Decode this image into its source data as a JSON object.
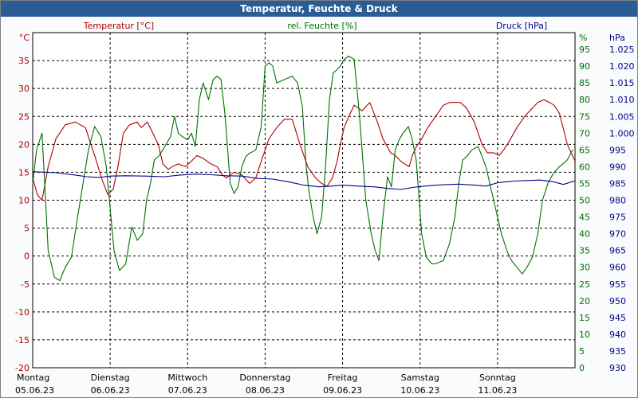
{
  "window": {
    "title": "Temperatur, Feuchte & Druck"
  },
  "chart_data": {
    "type": "line",
    "title": "Temperatur, Feuchte & Druck",
    "grid": true,
    "colors": {
      "temperature": "#b00000",
      "humidity": "#007000",
      "pressure": "#00008b",
      "grid": "#000000"
    },
    "axes": {
      "temperature": {
        "label": "Temperatur [°C]",
        "unit_label": "°C",
        "range": [
          -20,
          40
        ],
        "ticks": [
          "-20",
          "-15",
          "-10",
          "-5",
          "0",
          "5",
          "10",
          "15",
          "20",
          "25",
          "30",
          "35"
        ]
      },
      "humidity": {
        "label": "rel. Feuchte [%]",
        "unit_label": "%",
        "range": [
          0,
          100
        ],
        "ticks": [
          "0",
          "5",
          "10",
          "15",
          "20",
          "25",
          "30",
          "35",
          "40",
          "45",
          "50",
          "55",
          "60",
          "65",
          "70",
          "75",
          "80",
          "85",
          "90",
          "95"
        ]
      },
      "pressure": {
        "label": "Druck [hPa]",
        "unit_label": "hPa",
        "range": [
          930,
          1030
        ],
        "ticks": [
          "930",
          "935",
          "940",
          "945",
          "950",
          "955",
          "960",
          "965",
          "970",
          "975",
          "980",
          "985",
          "990",
          "995",
          "1.000",
          "1.005",
          "1.010",
          "1.015",
          "1.020",
          "1.025"
        ]
      },
      "x_range": [
        0,
        7
      ]
    },
    "days": [
      {
        "name": "Montag",
        "date": "05.06.23"
      },
      {
        "name": "Dienstag",
        "date": "06.06.23"
      },
      {
        "name": "Mittwoch",
        "date": "07.06.23"
      },
      {
        "name": "Donnerstag",
        "date": "08.06.23"
      },
      {
        "name": "Freitag",
        "date": "09.06.23"
      },
      {
        "name": "Samstag",
        "date": "10.06.23"
      },
      {
        "name": "Sonntag",
        "date": "11.06.23"
      }
    ],
    "series": [
      {
        "name": "Temperatur [°C]",
        "axis": "temperature",
        "x": [
          0,
          0.06,
          0.12,
          0.2,
          0.3,
          0.42,
          0.55,
          0.68,
          0.8,
          0.9,
          0.97,
          1.04,
          1.1,
          1.17,
          1.25,
          1.35,
          1.4,
          1.48,
          1.55,
          1.62,
          1.68,
          1.75,
          1.8,
          1.88,
          1.97,
          2.05,
          2.12,
          2.2,
          2.3,
          2.38,
          2.45,
          2.5,
          2.6,
          2.7,
          2.8,
          2.88,
          2.95,
          3.05,
          3.15,
          3.25,
          3.35,
          3.45,
          3.55,
          3.65,
          3.73,
          3.8,
          3.87,
          3.93,
          3.97,
          4.02,
          4.08,
          4.15,
          4.25,
          4.35,
          4.45,
          4.52,
          4.58,
          4.62,
          4.68,
          4.75,
          4.8,
          4.86,
          4.9,
          4.95,
          5.02,
          5.1,
          5.2,
          5.3,
          5.38,
          5.45,
          5.52,
          5.6,
          5.7,
          5.8,
          5.87,
          5.95,
          6.02,
          6.08,
          6.15,
          6.25,
          6.35,
          6.45,
          6.52,
          6.6,
          6.67,
          6.73,
          6.8,
          6.9,
          7.0
        ],
        "values": [
          14,
          11,
          10,
          16,
          21,
          23.5,
          24,
          23,
          18,
          13.5,
          11,
          12,
          16,
          22,
          23.5,
          24,
          23,
          24,
          22,
          20,
          16.5,
          15.5,
          16,
          16.5,
          16,
          17,
          18,
          17.5,
          16.5,
          16,
          14.5,
          14,
          15,
          14.5,
          13,
          14,
          17,
          21,
          23,
          24.5,
          24.5,
          20,
          16,
          14,
          13,
          12.5,
          14,
          17,
          20,
          23,
          25,
          27,
          26,
          27.5,
          24,
          21,
          19.5,
          18.5,
          18,
          17,
          16.5,
          16,
          18,
          19.5,
          21,
          23,
          25,
          27,
          27.5,
          27.5,
          27.5,
          26.5,
          24,
          20,
          18.5,
          18.5,
          18,
          19,
          20.5,
          23,
          25,
          26.5,
          27.5,
          28,
          27.5,
          27,
          25.5,
          20,
          17
        ]
      },
      {
        "name": "rel. Feuchte [%]",
        "axis": "humidity",
        "x": [
          0,
          0.05,
          0.12,
          0.2,
          0.28,
          0.35,
          0.42,
          0.5,
          0.58,
          0.65,
          0.72,
          0.8,
          0.88,
          0.95,
          1.05,
          1.12,
          1.2,
          1.28,
          1.35,
          1.42,
          1.47,
          1.52,
          1.57,
          1.62,
          1.68,
          1.73,
          1.78,
          1.83,
          1.88,
          1.93,
          2.0,
          2.05,
          2.1,
          2.15,
          2.2,
          2.27,
          2.33,
          2.38,
          2.43,
          2.48,
          2.55,
          2.6,
          2.65,
          2.7,
          2.75,
          2.8,
          2.88,
          2.95,
          3.0,
          3.05,
          3.1,
          3.15,
          3.25,
          3.35,
          3.42,
          3.48,
          3.53,
          3.57,
          3.62,
          3.67,
          3.73,
          3.78,
          3.83,
          3.88,
          3.93,
          3.97,
          4.02,
          4.08,
          4.15,
          4.22,
          4.3,
          4.37,
          4.42,
          4.47,
          4.52,
          4.58,
          4.63,
          4.68,
          4.73,
          4.78,
          4.85,
          4.9,
          4.95,
          5.02,
          5.08,
          5.15,
          5.2,
          5.3,
          5.38,
          5.45,
          5.5,
          5.55,
          5.6,
          5.67,
          5.75,
          5.85,
          5.95,
          6.05,
          6.12,
          6.18,
          6.25,
          6.32,
          6.38,
          6.45,
          6.52,
          6.58,
          6.65,
          6.72,
          6.8,
          6.9,
          6.97
        ],
        "values": [
          55,
          65,
          70,
          35,
          27,
          26,
          30,
          33,
          45,
          55,
          65,
          72,
          69,
          60,
          35,
          29,
          31,
          42,
          38,
          40,
          50,
          55,
          62,
          63,
          65,
          67,
          69,
          75,
          70,
          69,
          68,
          70,
          66,
          80,
          85,
          80,
          86,
          87,
          86,
          76,
          55,
          52,
          54,
          60,
          63,
          64,
          65,
          72,
          90,
          91,
          90,
          85,
          86,
          87,
          85,
          78,
          60,
          52,
          45,
          40,
          45,
          60,
          80,
          88,
          89,
          90,
          92,
          93,
          92,
          75,
          50,
          40,
          35,
          32,
          45,
          57,
          54,
          65,
          68,
          70,
          72,
          68,
          62,
          40,
          33,
          31,
          31,
          32,
          37,
          45,
          55,
          62,
          63,
          65,
          66,
          60,
          50,
          40,
          35,
          32,
          30,
          28,
          30,
          33,
          40,
          50,
          55,
          58,
          60,
          62,
          65
        ],
        "raw_note": ""
      },
      {
        "name": "Druck [hPa]",
        "axis": "pressure",
        "x": [
          0,
          0.3,
          0.55,
          0.7,
          0.85,
          1.0,
          1.2,
          1.45,
          1.7,
          1.9,
          2.1,
          2.3,
          2.5,
          2.7,
          2.9,
          3.1,
          3.3,
          3.5,
          3.7,
          3.85,
          4.0,
          4.2,
          4.4,
          4.6,
          4.75,
          4.9,
          5.1,
          5.3,
          5.5,
          5.7,
          5.85,
          6.0,
          6.2,
          6.4,
          6.55,
          6.7,
          6.85,
          7.0
        ],
        "values": [
          988.5,
          988.2,
          987.5,
          987,
          986.8,
          987.2,
          987.3,
          987.2,
          987,
          987.5,
          987.8,
          987.6,
          987.3,
          987.2,
          986.5,
          986.3,
          985.5,
          984.5,
          984,
          984.2,
          984.5,
          984.2,
          984,
          983.5,
          983.2,
          983.8,
          984.3,
          984.6,
          984.8,
          984.5,
          984.2,
          985.2,
          985.7,
          985.9,
          986,
          985.6,
          984.7,
          985.8
        ]
      }
    ]
  }
}
